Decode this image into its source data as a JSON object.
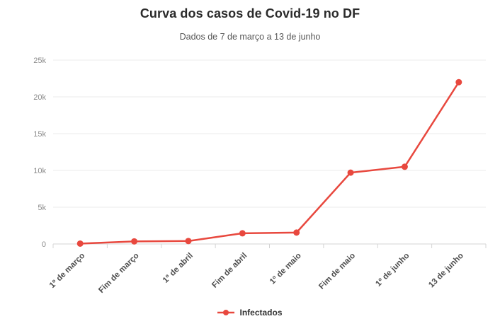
{
  "header": {
    "title": "Curva dos casos de Covid-19 no DF",
    "subtitle": "Dados de 7 de março a 13 de junho"
  },
  "legend": {
    "items": [
      {
        "label": "Infectados",
        "color": "#e8483e",
        "marker": "line-circle"
      }
    ]
  },
  "colors": {
    "background": "#ffffff",
    "title": "#2b2b2b",
    "subtitle": "#565656",
    "series": "#e8483e",
    "grid": "#ebebeb",
    "axis": "#d4d4d4",
    "y_tick_text": "#8a8a8a",
    "x_tick_text": "#4d4d4d",
    "legend_text": "#333333"
  },
  "chart_data": {
    "type": "line",
    "title": "Curva dos casos de Covid-19 no DF",
    "subtitle": "Dados de 7 de março a 13 de junho",
    "categories": [
      "1º de março",
      "Fim de março",
      "1º de abril",
      "Fim de abril",
      "1º de maio",
      "Fim de maio",
      "1º de junho",
      "13 de junho"
    ],
    "series": [
      {
        "name": "Infectados",
        "color": "#e8483e",
        "values": [
          50,
          350,
          400,
          1450,
          1550,
          9700,
          10500,
          22000
        ]
      }
    ],
    "ylim": [
      0,
      25000
    ],
    "y_ticks": [
      {
        "value": 0,
        "label": "0"
      },
      {
        "value": 5000,
        "label": "5k"
      },
      {
        "value": 10000,
        "label": "10k"
      },
      {
        "value": 15000,
        "label": "15k"
      },
      {
        "value": 20000,
        "label": "20k"
      },
      {
        "value": 25000,
        "label": "25k"
      }
    ],
    "grid": true,
    "legend_position": "bottom",
    "x_label_rotation": -45
  }
}
